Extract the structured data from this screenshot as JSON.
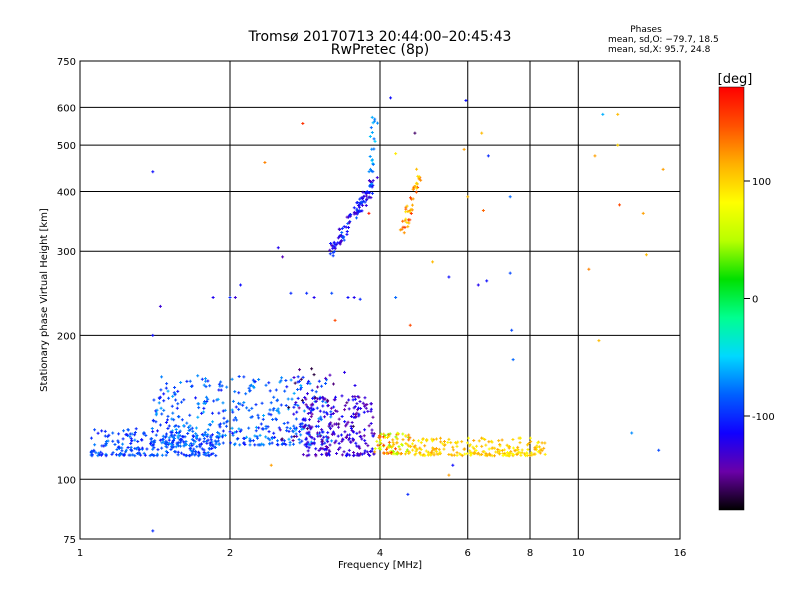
{
  "chart_data": {
    "type": "scatter",
    "title": "Tromsø 20170713 20:44:00–20:45:43",
    "subtitle": "RwPretec (8p)",
    "xlabel": "Frequency [MHz]",
    "ylabel": "Stationary phase Virtual Height [km]",
    "x_scale": "log",
    "y_scale": "log",
    "xlim": [
      1,
      16
    ],
    "ylim": [
      75,
      750
    ],
    "x_ticks": [
      1,
      2,
      4,
      6,
      8,
      10,
      16
    ],
    "y_ticks": [
      75,
      100,
      200,
      300,
      400,
      500,
      600,
      750
    ],
    "grid": true,
    "stats": {
      "heading": "Phases",
      "line_o": "mean, sd,O: −79.7, 18.5",
      "line_x": "mean, sd,X:  95.7, 24.8"
    },
    "colorbar": {
      "label": "[deg]",
      "range": [
        -180,
        180
      ],
      "ticks": [
        100,
        0,
        -100
      ],
      "colors": [
        "#000000",
        "#6a00a8",
        "#1000ff",
        "#0060ff",
        "#00d8ff",
        "#00ff90",
        "#00e000",
        "#b8ff00",
        "#ffff00",
        "#ffb000",
        "#ff5000",
        "#ff0000"
      ]
    },
    "clusters": [
      {
        "x": [
          1.05,
          1.9
        ],
        "y": [
          112,
          128
        ],
        "phase": [
          -110,
          -70
        ],
        "n": 260
      },
      {
        "x": [
          1.4,
          3.2
        ],
        "y": [
          118,
          165
        ],
        "phase": [
          -110,
          -60
        ],
        "n": 420
      },
      {
        "x": [
          2.8,
          3.9
        ],
        "y": [
          112,
          150
        ],
        "phase": [
          -150,
          -110
        ],
        "n": 210
      },
      {
        "x": [
          3.9,
          4.6
        ],
        "y": [
          113,
          125
        ],
        "phase": [
          40,
          160
        ],
        "n": 90
      },
      {
        "x": [
          4.6,
          8.6
        ],
        "y": [
          112,
          122
        ],
        "phase": [
          80,
          120
        ],
        "n": 220
      },
      {
        "x": [
          2.5,
          3.6
        ],
        "y": [
          120,
          172
        ],
        "phase": [
          -170,
          -120
        ],
        "n": 60
      }
    ],
    "traces": [
      {
        "x": [
          3.2,
          3.9
        ],
        "y": [
          300,
          420
        ],
        "phase": [
          -140,
          -80
        ],
        "n": 110
      },
      {
        "x": [
          3.85,
          3.9
        ],
        "y": [
          420,
          570
        ],
        "phase": [
          -80,
          -50
        ],
        "n": 22
      },
      {
        "x": [
          4.45,
          4.8
        ],
        "y": [
          330,
          440
        ],
        "phase": [
          90,
          160
        ],
        "n": 45
      }
    ],
    "points": [
      {
        "x": 1.4,
        "y": 440,
        "phase": -110
      },
      {
        "x": 1.4,
        "y": 200,
        "phase": -110
      },
      {
        "x": 1.4,
        "y": 78,
        "phase": -100
      },
      {
        "x": 1.45,
        "y": 230,
        "phase": -130
      },
      {
        "x": 1.85,
        "y": 240,
        "phase": -120
      },
      {
        "x": 2.0,
        "y": 240,
        "phase": -100
      },
      {
        "x": 2.05,
        "y": 240,
        "phase": -130
      },
      {
        "x": 2.1,
        "y": 255,
        "phase": -110
      },
      {
        "x": 2.35,
        "y": 460,
        "phase": 130
      },
      {
        "x": 2.42,
        "y": 107,
        "phase": 120
      },
      {
        "x": 2.5,
        "y": 305,
        "phase": -120
      },
      {
        "x": 2.55,
        "y": 292,
        "phase": -140
      },
      {
        "x": 2.65,
        "y": 245,
        "phase": -100
      },
      {
        "x": 2.8,
        "y": 555,
        "phase": 160
      },
      {
        "x": 2.85,
        "y": 245,
        "phase": -100
      },
      {
        "x": 2.95,
        "y": 240,
        "phase": -120
      },
      {
        "x": 3.2,
        "y": 245,
        "phase": -90
      },
      {
        "x": 3.25,
        "y": 215,
        "phase": 150
      },
      {
        "x": 3.3,
        "y": 320,
        "phase": -130
      },
      {
        "x": 3.45,
        "y": 240,
        "phase": -110
      },
      {
        "x": 3.55,
        "y": 240,
        "phase": -120
      },
      {
        "x": 3.65,
        "y": 238,
        "phase": -100
      },
      {
        "x": 3.8,
        "y": 360,
        "phase": 170
      },
      {
        "x": 4.2,
        "y": 628,
        "phase": -110
      },
      {
        "x": 4.3,
        "y": 240,
        "phase": -80
      },
      {
        "x": 4.3,
        "y": 480,
        "phase": 90
      },
      {
        "x": 4.55,
        "y": 93,
        "phase": -100
      },
      {
        "x": 4.6,
        "y": 210,
        "phase": 150
      },
      {
        "x": 4.7,
        "y": 530,
        "phase": -160
      },
      {
        "x": 5.1,
        "y": 285,
        "phase": 110
      },
      {
        "x": 5.5,
        "y": 265,
        "phase": -110
      },
      {
        "x": 5.5,
        "y": 102,
        "phase": 120
      },
      {
        "x": 5.6,
        "y": 107,
        "phase": -110
      },
      {
        "x": 5.9,
        "y": 490,
        "phase": 120
      },
      {
        "x": 5.95,
        "y": 620,
        "phase": -110
      },
      {
        "x": 6.0,
        "y": 390,
        "phase": 110
      },
      {
        "x": 6.3,
        "y": 255,
        "phase": -120
      },
      {
        "x": 6.4,
        "y": 530,
        "phase": 110
      },
      {
        "x": 6.45,
        "y": 365,
        "phase": 140
      },
      {
        "x": 6.55,
        "y": 260,
        "phase": -110
      },
      {
        "x": 6.6,
        "y": 475,
        "phase": -100
      },
      {
        "x": 7.3,
        "y": 390,
        "phase": -80
      },
      {
        "x": 7.3,
        "y": 270,
        "phase": -90
      },
      {
        "x": 7.35,
        "y": 205,
        "phase": -90
      },
      {
        "x": 7.4,
        "y": 178,
        "phase": -80
      },
      {
        "x": 10.5,
        "y": 275,
        "phase": 130
      },
      {
        "x": 10.8,
        "y": 475,
        "phase": 120
      },
      {
        "x": 11.0,
        "y": 195,
        "phase": 110
      },
      {
        "x": 11.2,
        "y": 580,
        "phase": -60
      },
      {
        "x": 12.0,
        "y": 580,
        "phase": 110
      },
      {
        "x": 12.0,
        "y": 500,
        "phase": 100
      },
      {
        "x": 12.1,
        "y": 375,
        "phase": 150
      },
      {
        "x": 12.8,
        "y": 125,
        "phase": -70
      },
      {
        "x": 13.5,
        "y": 360,
        "phase": 120
      },
      {
        "x": 13.7,
        "y": 295,
        "phase": 110
      },
      {
        "x": 14.5,
        "y": 115,
        "phase": -90
      },
      {
        "x": 14.8,
        "y": 445,
        "phase": 120
      }
    ]
  }
}
